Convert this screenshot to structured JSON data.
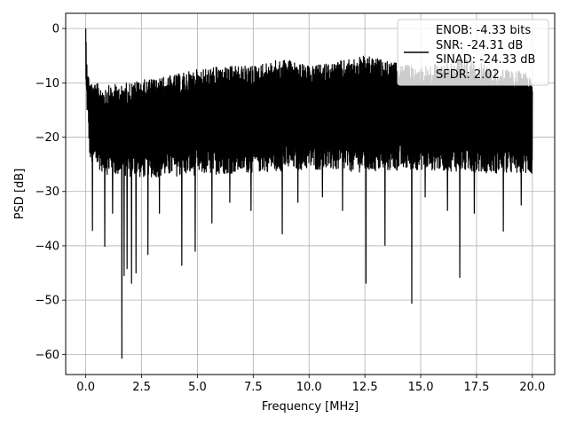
{
  "chart_data": {
    "type": "line",
    "xlabel": "Frequency [MHz]",
    "ylabel": "PSD [dB]",
    "xlim": [
      -0.9,
      21.0
    ],
    "ylim": [
      -63.7,
      2.8
    ],
    "xticks": [
      0.0,
      2.5,
      5.0,
      7.5,
      10.0,
      12.5,
      15.0,
      17.5,
      20.0
    ],
    "xtick_labels": [
      "0.0",
      "2.5",
      "5.0",
      "7.5",
      "10.0",
      "12.5",
      "15.0",
      "17.5",
      "20.0"
    ],
    "yticks": [
      0,
      -10,
      -20,
      -30,
      -40,
      -50,
      -60
    ],
    "ytick_labels": [
      "0",
      "−10",
      "−20",
      "−30",
      "−40",
      "−50",
      "−60"
    ],
    "grid": true,
    "legend_position": "top-right",
    "line_color": "#000000",
    "legend": {
      "lines": [
        "ENOB: -4.33 bits",
        "SNR: -24.31 dB",
        "SINAD: -24.33 dB",
        "SFDR: 2.02"
      ]
    },
    "series": [
      {
        "x_range": [
          0.0,
          20.0
        ],
        "envelope_upper": [
          [
            0.0,
            0.0
          ],
          [
            0.05,
            -4.0
          ],
          [
            0.1,
            -8.0
          ],
          [
            0.3,
            -10.0
          ],
          [
            1.0,
            -10.5
          ],
          [
            2.5,
            -9.5
          ],
          [
            4.0,
            -8.5
          ],
          [
            5.0,
            -7.5
          ],
          [
            6.0,
            -7.0
          ],
          [
            7.5,
            -6.8
          ],
          [
            9.0,
            -5.5
          ],
          [
            10.0,
            -7.0
          ],
          [
            12.0,
            -5.5
          ],
          [
            12.5,
            -5.0
          ],
          [
            14.0,
            -6.5
          ],
          [
            15.0,
            -7.0
          ],
          [
            17.0,
            -5.5
          ],
          [
            18.5,
            -7.5
          ],
          [
            20.0,
            -8.0
          ]
        ],
        "envelope_lower": [
          [
            0.0,
            -12.0
          ],
          [
            0.2,
            -25.0
          ],
          [
            1.0,
            -27.0
          ],
          [
            2.5,
            -27.5
          ],
          [
            5.0,
            -27.0
          ],
          [
            7.5,
            -26.5
          ],
          [
            10.0,
            -26.0
          ],
          [
            12.5,
            -26.5
          ],
          [
            15.0,
            -26.0
          ],
          [
            17.5,
            -26.5
          ],
          [
            20.0,
            -27.0
          ]
        ],
        "dips": [
          [
            0.3,
            -37.2
          ],
          [
            0.85,
            -40.1
          ],
          [
            1.2,
            -34.0
          ],
          [
            1.62,
            -60.7
          ],
          [
            1.72,
            -45.5
          ],
          [
            1.85,
            -44.2
          ],
          [
            2.05,
            -46.9
          ],
          [
            2.25,
            -45.0
          ],
          [
            2.78,
            -41.6
          ],
          [
            3.3,
            -34.0
          ],
          [
            4.3,
            -43.6
          ],
          [
            4.9,
            -41.0
          ],
          [
            5.65,
            -35.8
          ],
          [
            6.45,
            -32.0
          ],
          [
            7.4,
            -33.5
          ],
          [
            8.8,
            -37.8
          ],
          [
            9.5,
            -32.0
          ],
          [
            10.6,
            -31.0
          ],
          [
            11.5,
            -33.5
          ],
          [
            12.55,
            -46.9
          ],
          [
            13.4,
            -39.9
          ],
          [
            14.6,
            -50.6
          ],
          [
            15.2,
            -31.0
          ],
          [
            16.2,
            -33.5
          ],
          [
            16.75,
            -45.8
          ],
          [
            17.4,
            -34.0
          ],
          [
            18.7,
            -37.3
          ],
          [
            19.5,
            -32.5
          ]
        ]
      }
    ]
  }
}
